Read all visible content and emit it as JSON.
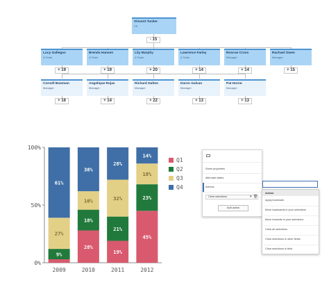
{
  "org": {
    "root": {
      "name": "Vincent Tucker",
      "title": "CE",
      "count": "- 15"
    },
    "level1": [
      {
        "name": "Lucy Gallegos",
        "title": "A Team",
        "count": "+ 19"
      },
      {
        "name": "Brenda Hansen",
        "title": "A Team",
        "count": "+ 19"
      },
      {
        "name": "Lily Murphy",
        "title": "A Team",
        "count": "+ 20"
      },
      {
        "name": "Lawrence Farley",
        "title": "A Team",
        "count": "+ 14"
      },
      {
        "name": "Roscoe Cross",
        "title": "Manager",
        "count": "+ 14"
      },
      {
        "name": "Rachael Owen",
        "title": "Manager",
        "count": "+ 15"
      }
    ],
    "level2": [
      {
        "name": "Cornell Bowman",
        "title": "Manager",
        "count": "+ 16"
      },
      {
        "name": "Angelique Rojas",
        "title": "Manager",
        "count": "+ 14"
      },
      {
        "name": "Richard Dalton",
        "title": "Manager",
        "count": "+ 22"
      },
      {
        "name": "Daron Galvan",
        "title": "Manager",
        "count": "+ 13"
      },
      {
        "name": "Pat Horne",
        "title": "Manager",
        "count": "+ 13"
      }
    ]
  },
  "chart_data": {
    "type": "bar",
    "stacked": true,
    "percent": true,
    "categories": [
      "2009",
      "2010",
      "2011",
      "2012"
    ],
    "series": [
      {
        "name": "Q1",
        "color": "#d95a6e",
        "values": [
          3,
          28,
          19,
          45
        ],
        "labels": [
          "",
          "28%",
          "19%",
          "45%"
        ]
      },
      {
        "name": "Q2",
        "color": "#217a3c",
        "values": [
          9,
          18,
          21,
          23
        ],
        "labels": [
          "9%",
          "18%",
          "21%",
          "23%"
        ]
      },
      {
        "name": "Q3",
        "color": "#e3d087",
        "values": [
          27,
          16,
          32,
          18
        ],
        "labels": [
          "27%",
          "16%",
          "32%",
          "18%"
        ]
      },
      {
        "name": "Q4",
        "color": "#3f6fa6",
        "values": [
          61,
          38,
          28,
          14
        ],
        "labels": [
          "61%",
          "38%",
          "28%",
          "14%"
        ]
      }
    ],
    "yticks": [
      "0%",
      "50%",
      "100%"
    ],
    "ylim": [
      0,
      100
    ],
    "legend": "right",
    "grid": false
  },
  "panel": {
    "items": [
      "Sheet properties",
      "Alternate states",
      "Actions"
    ],
    "selection_row": "Clear selections",
    "add_button": "Add action"
  },
  "dropdown": {
    "header": "Action",
    "items": [
      "Apply bookmark",
      "Move backwards in your selections",
      "Move forwards in your selections",
      "Clear all selections",
      "Clear selections in other fields",
      "Clear selections in field"
    ]
  }
}
